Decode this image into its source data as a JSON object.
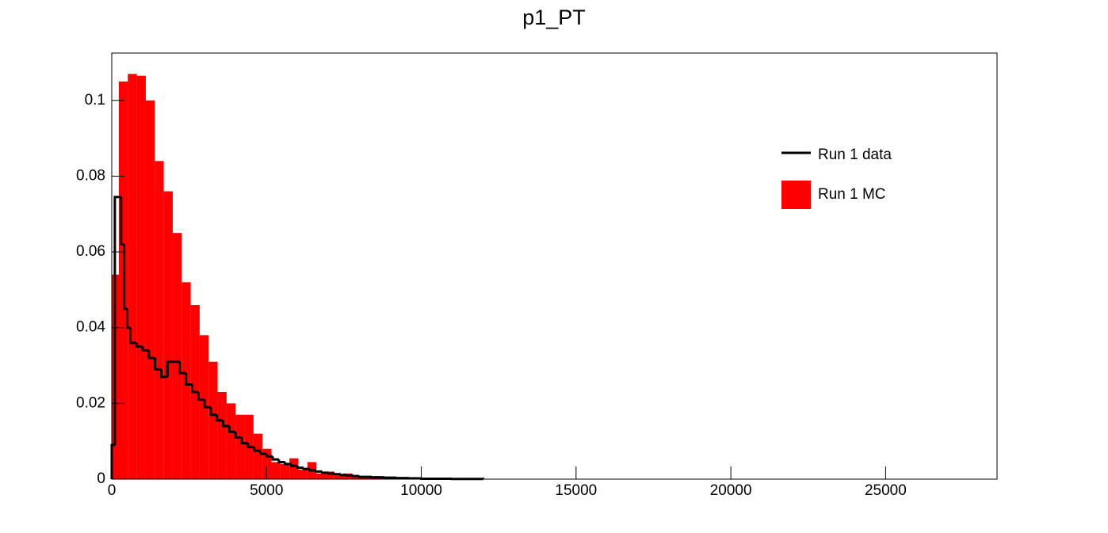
{
  "chart_data": {
    "type": "histogram",
    "title": "p1_PT",
    "xlim": [
      0,
      28600
    ],
    "ylim": [
      0,
      0.1125
    ],
    "xticks": [
      0,
      5000,
      10000,
      15000,
      20000,
      25000
    ],
    "yticks": [
      0,
      0.02,
      0.04,
      0.06,
      0.08,
      0.1
    ],
    "legend": "upper-right",
    "series": [
      {
        "name": "Run 1 MC",
        "color": "#ff0000",
        "style": "filled",
        "bins": [
          0,
          230,
          520,
          810,
          1100,
          1390,
          1680,
          1970,
          2260,
          2550,
          2840,
          3130,
          3420,
          3710,
          4000,
          4290,
          4580,
          4870,
          5160,
          5450,
          5740,
          6030,
          6320,
          6610,
          6900,
          7190,
          7480,
          7770,
          8060,
          8350,
          8640,
          8930,
          9220,
          9510,
          9800,
          10090,
          10380,
          10670
        ],
        "values": [
          0.054,
          0.105,
          0.107,
          0.1065,
          0.1,
          0.084,
          0.076,
          0.065,
          0.052,
          0.046,
          0.038,
          0.031,
          0.023,
          0.02,
          0.017,
          0.017,
          0.012,
          0.008,
          0.0045,
          0.004,
          0.0055,
          0.0025,
          0.0045,
          0.0015,
          0.002,
          0.001,
          0.0015,
          0.0006,
          0.0006,
          0.0003,
          0.0003,
          0.0002,
          0.0002,
          0.0001,
          0.0002,
          0.0001,
          0.0001
        ]
      },
      {
        "name": "Run 1 data",
        "color": "#000000",
        "style": "step",
        "bins": [
          0,
          100,
          300,
          400,
          500,
          600,
          800,
          1000,
          1200,
          1400,
          1600,
          1800,
          2000,
          2200,
          2400,
          2600,
          2800,
          3000,
          3200,
          3400,
          3600,
          3800,
          4000,
          4200,
          4400,
          4600,
          4800,
          5000,
          5200,
          5400,
          5600,
          5800,
          6000,
          6200,
          6400,
          6600,
          6800,
          7000,
          7200,
          7400,
          7600,
          7800,
          8000,
          8400,
          8800,
          9200,
          9600,
          10000,
          11000,
          12000
        ],
        "values": [
          0.009,
          0.0745,
          0.062,
          0.045,
          0.04,
          0.036,
          0.035,
          0.034,
          0.032,
          0.029,
          0.027,
          0.031,
          0.031,
          0.028,
          0.025,
          0.023,
          0.021,
          0.019,
          0.017,
          0.0155,
          0.014,
          0.0125,
          0.011,
          0.0095,
          0.0085,
          0.0075,
          0.0067,
          0.006,
          0.0052,
          0.0045,
          0.004,
          0.0035,
          0.003,
          0.0027,
          0.0023,
          0.002,
          0.0017,
          0.0015,
          0.0013,
          0.0011,
          0.001,
          0.0008,
          0.0006,
          0.0005,
          0.0004,
          0.0003,
          0.0002,
          0.0001,
          5e-05
        ]
      }
    ]
  }
}
